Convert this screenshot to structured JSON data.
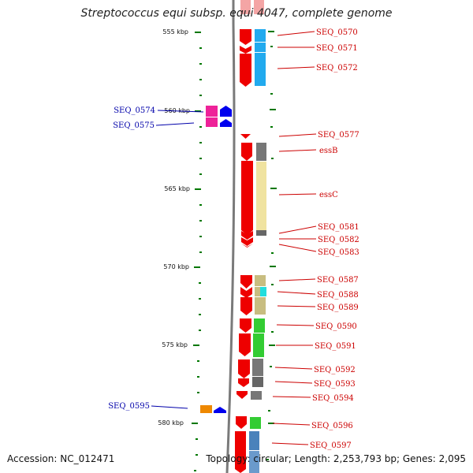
{
  "title": "Streptococcus equi subsp. equi 4047, complete genome",
  "accession": "Accession: NC_012471",
  "topology": "Topology: circular; Length: 2,253,793 bp; Genes: 2,095",
  "colors": {
    "forward_label": "#cc0000",
    "reverse_label": "#0000aa",
    "tick": "#007700",
    "backbone": "#888888"
  },
  "ruler": {
    "ticks": [
      {
        "label": "555 kbp"
      },
      {
        "label": "560 kbp"
      },
      {
        "label": "565 kbp"
      },
      {
        "label": "570 kbp"
      },
      {
        "label": "575 kbp"
      },
      {
        "label": "580 kbp"
      }
    ]
  },
  "labels": {
    "right": [
      "SEQ_0570",
      "SEQ_0571",
      "SEQ_0572",
      "SEQ_0577",
      "essB",
      "essC",
      "SEQ_0581",
      "SEQ_0582",
      "SEQ_0583",
      "SEQ_0587",
      "SEQ_0588",
      "SEQ_0589",
      "SEQ_0590",
      "SEQ_0591",
      "SEQ_0592",
      "SEQ_0593",
      "SEQ_0594",
      "SEQ_0596",
      "SEQ_0597"
    ],
    "left": [
      "SEQ_0574",
      "SEQ_0575",
      "SEQ_0595"
    ]
  }
}
